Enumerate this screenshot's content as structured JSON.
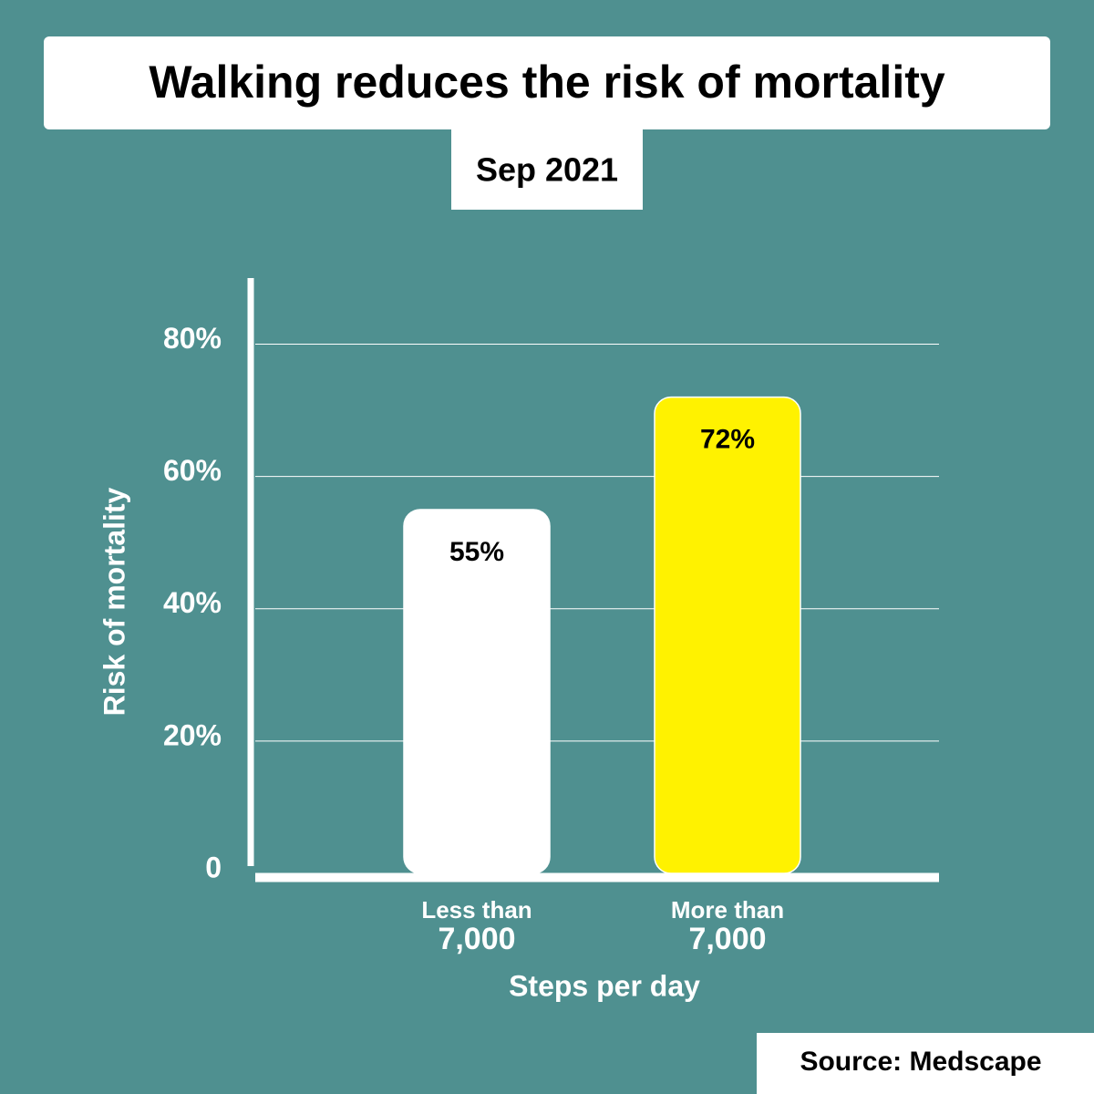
{
  "chart_data": {
    "type": "bar",
    "title": "Walking reduces the risk of mortality",
    "subtitle": "Sep 2021",
    "categories": [
      "Less than 7,000",
      "More than 7,000"
    ],
    "values": [
      55,
      72
    ],
    "value_labels": [
      "55%",
      "72%"
    ],
    "colors": [
      "#ffffff",
      "#fff200"
    ],
    "x_label": "Steps per day",
    "y_label": "Risk of mortality",
    "ylim": [
      0,
      90
    ],
    "yticks": [
      0,
      {
        "value": 20,
        "label": "20%"
      },
      {
        "value": 40,
        "label": "40%"
      },
      {
        "value": 60,
        "label": "60%"
      },
      {
        "value": 80,
        "label": "80%"
      }
    ],
    "grid": true,
    "source": "Source: Medscape"
  }
}
